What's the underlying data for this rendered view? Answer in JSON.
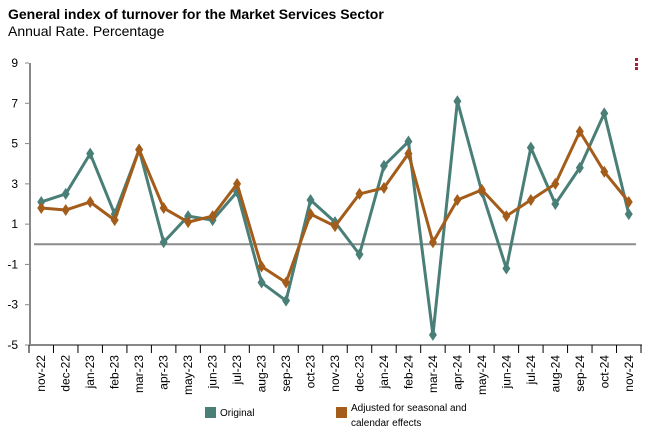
{
  "chart_data": {
    "type": "line",
    "title": "General index of turnover for the Market Services Sector",
    "subtitle": "Annual Rate. Percentage",
    "xlabel": "",
    "ylabel": "",
    "ylim": [
      -5,
      9
    ],
    "yticks": [
      9,
      7,
      5,
      3,
      1,
      -1,
      -3,
      -5
    ],
    "reference_line": 0,
    "categories": [
      "nov-22",
      "dec-22",
      "jan-23",
      "feb-23",
      "mar-23",
      "apr-23",
      "may-23",
      "jun-23",
      "jul-23",
      "aug-23",
      "sep-23",
      "oct-23",
      "nov-23",
      "dec-23",
      "jan-24",
      "feb-24",
      "mar-24",
      "apr-24",
      "may-24",
      "jun-24",
      "jul-24",
      "aug-24",
      "sep-24",
      "oct-24",
      "nov-24"
    ],
    "series": [
      {
        "name": "Original",
        "color": "#4a7f78",
        "values": [
          2.1,
          2.5,
          4.5,
          1.5,
          4.7,
          0.1,
          1.4,
          1.2,
          2.6,
          -1.9,
          -2.8,
          2.2,
          1.1,
          -0.5,
          3.9,
          5.1,
          -4.5,
          7.1,
          2.6,
          -1.2,
          4.8,
          2.0,
          3.8,
          6.5,
          1.5
        ]
      },
      {
        "name": "Adjusted for seasonal and calendar effects",
        "color": "#a35c1a",
        "values": [
          1.8,
          1.7,
          2.1,
          1.2,
          4.7,
          1.8,
          1.1,
          1.4,
          3.0,
          -1.1,
          -1.9,
          1.5,
          0.9,
          2.5,
          2.8,
          4.5,
          0.1,
          2.2,
          2.7,
          1.4,
          2.2,
          3.0,
          5.6,
          3.6,
          2.1
        ]
      }
    ],
    "legend_position": "bottom",
    "grid": false
  },
  "menu_icon": "more-vertical-icon"
}
